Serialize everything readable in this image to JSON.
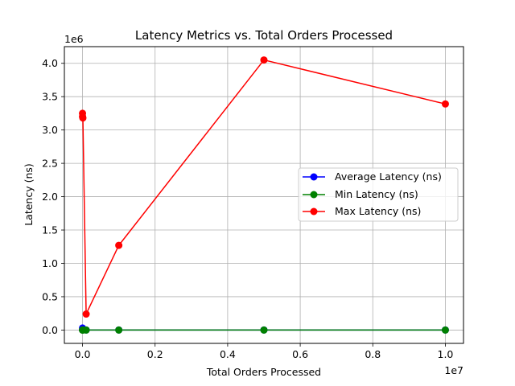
{
  "chart_data": {
    "type": "line",
    "title": "Latency Metrics vs. Total Orders Processed",
    "xlabel": "Total Orders Processed",
    "ylabel": "Latency (ns)",
    "x_offset_text": "1e7",
    "y_offset_text": "1e6",
    "xlim": [
      -500000,
      10500000
    ],
    "ylim": [
      -200000,
      4250000
    ],
    "xticks": [
      0,
      2000000,
      4000000,
      6000000,
      8000000,
      10000000
    ],
    "xtick_labels": [
      "0.0",
      "0.2",
      "0.4",
      "0.6",
      "0.8",
      "1.0"
    ],
    "yticks": [
      0,
      500000,
      1000000,
      1500000,
      2000000,
      2500000,
      3000000,
      3500000,
      4000000
    ],
    "ytick_labels": [
      "0.0",
      "0.5",
      "1.0",
      "1.5",
      "2.0",
      "2.5",
      "3.0",
      "3.5",
      "4.0"
    ],
    "grid": true,
    "legend_position": "center-right",
    "series": [
      {
        "name": "Average Latency (ns)",
        "color": "#0000ff",
        "x": [
          100,
          1000,
          10000,
          100000,
          1000000,
          5000000,
          10000000
        ],
        "y": [
          30000,
          2000,
          1500,
          1200,
          1000,
          900,
          800
        ]
      },
      {
        "name": "Min Latency (ns)",
        "color": "#008000",
        "x": [
          100,
          1000,
          10000,
          100000,
          1000000,
          5000000,
          10000000
        ],
        "y": [
          400,
          300,
          250,
          200,
          150,
          150,
          150
        ]
      },
      {
        "name": "Max Latency (ns)",
        "color": "#ff0000",
        "x": [
          100,
          1000,
          10000,
          100000,
          1000000,
          5000000,
          10000000
        ],
        "y": [
          3250000,
          3200000,
          3180000,
          240000,
          1270000,
          4050000,
          3390000
        ]
      }
    ]
  }
}
